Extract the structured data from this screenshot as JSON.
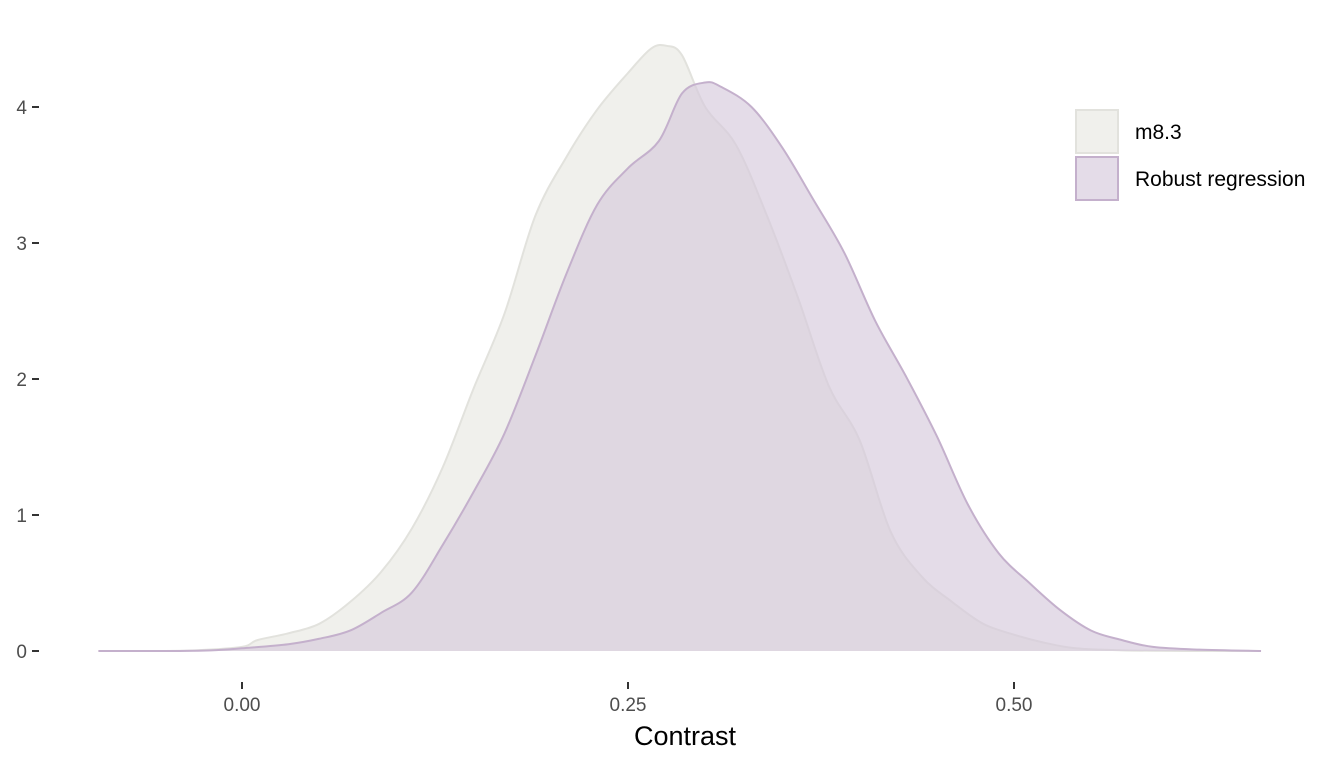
{
  "chart_data": {
    "type": "area",
    "title": "",
    "xlabel": "Contrast",
    "ylabel": "",
    "xlim": [
      -0.095,
      0.66
    ],
    "ylim": [
      0,
      4.5
    ],
    "x_ticks": [
      {
        "value": 0.0,
        "label": "0.00"
      },
      {
        "value": 0.25,
        "label": "0.25"
      },
      {
        "value": 0.5,
        "label": "0.50"
      }
    ],
    "y_ticks": [
      {
        "value": 0,
        "label": "0"
      },
      {
        "value": 1,
        "label": "1"
      },
      {
        "value": 2,
        "label": "2"
      },
      {
        "value": 3,
        "label": "3"
      },
      {
        "value": 4,
        "label": "4"
      }
    ],
    "grid": false,
    "legend_position": "top-right",
    "series": [
      {
        "name": "m8.3",
        "fill": "#f0f0ec",
        "stroke": "#e2e2dd",
        "points": [
          [
            -0.093,
            0.0
          ],
          [
            -0.06,
            0.0
          ],
          [
            -0.03,
            0.005
          ],
          [
            0.0,
            0.03
          ],
          [
            0.01,
            0.08
          ],
          [
            0.03,
            0.13
          ],
          [
            0.05,
            0.2
          ],
          [
            0.07,
            0.36
          ],
          [
            0.09,
            0.58
          ],
          [
            0.11,
            0.9
          ],
          [
            0.13,
            1.35
          ],
          [
            0.15,
            1.93
          ],
          [
            0.17,
            2.48
          ],
          [
            0.19,
            3.2
          ],
          [
            0.21,
            3.63
          ],
          [
            0.23,
            3.98
          ],
          [
            0.25,
            4.25
          ],
          [
            0.265,
            4.43
          ],
          [
            0.275,
            4.45
          ],
          [
            0.285,
            4.38
          ],
          [
            0.3,
            4.0
          ],
          [
            0.32,
            3.72
          ],
          [
            0.34,
            3.2
          ],
          [
            0.36,
            2.6
          ],
          [
            0.38,
            1.95
          ],
          [
            0.4,
            1.55
          ],
          [
            0.42,
            0.88
          ],
          [
            0.44,
            0.55
          ],
          [
            0.46,
            0.36
          ],
          [
            0.48,
            0.2
          ],
          [
            0.5,
            0.12
          ],
          [
            0.52,
            0.06
          ],
          [
            0.54,
            0.02
          ],
          [
            0.57,
            0.005
          ],
          [
            0.61,
            0.0
          ],
          [
            0.66,
            0.0
          ]
        ]
      },
      {
        "name": "Robust regression",
        "fill": "#d5c9dc",
        "stroke": "#c4b0cc",
        "points": [
          [
            -0.093,
            0.0
          ],
          [
            -0.05,
            0.0
          ],
          [
            -0.02,
            0.005
          ],
          [
            0.0,
            0.02
          ],
          [
            0.03,
            0.05
          ],
          [
            0.05,
            0.09
          ],
          [
            0.07,
            0.15
          ],
          [
            0.09,
            0.28
          ],
          [
            0.11,
            0.43
          ],
          [
            0.13,
            0.78
          ],
          [
            0.15,
            1.17
          ],
          [
            0.17,
            1.6
          ],
          [
            0.19,
            2.17
          ],
          [
            0.21,
            2.77
          ],
          [
            0.23,
            3.28
          ],
          [
            0.25,
            3.55
          ],
          [
            0.27,
            3.75
          ],
          [
            0.285,
            4.1
          ],
          [
            0.3,
            4.18
          ],
          [
            0.31,
            4.15
          ],
          [
            0.33,
            4.0
          ],
          [
            0.35,
            3.7
          ],
          [
            0.37,
            3.32
          ],
          [
            0.39,
            2.93
          ],
          [
            0.41,
            2.43
          ],
          [
            0.43,
            2.02
          ],
          [
            0.45,
            1.58
          ],
          [
            0.47,
            1.08
          ],
          [
            0.49,
            0.72
          ],
          [
            0.51,
            0.5
          ],
          [
            0.53,
            0.3
          ],
          [
            0.55,
            0.15
          ],
          [
            0.57,
            0.08
          ],
          [
            0.59,
            0.03
          ],
          [
            0.62,
            0.01
          ],
          [
            0.66,
            0.0
          ]
        ]
      }
    ]
  }
}
